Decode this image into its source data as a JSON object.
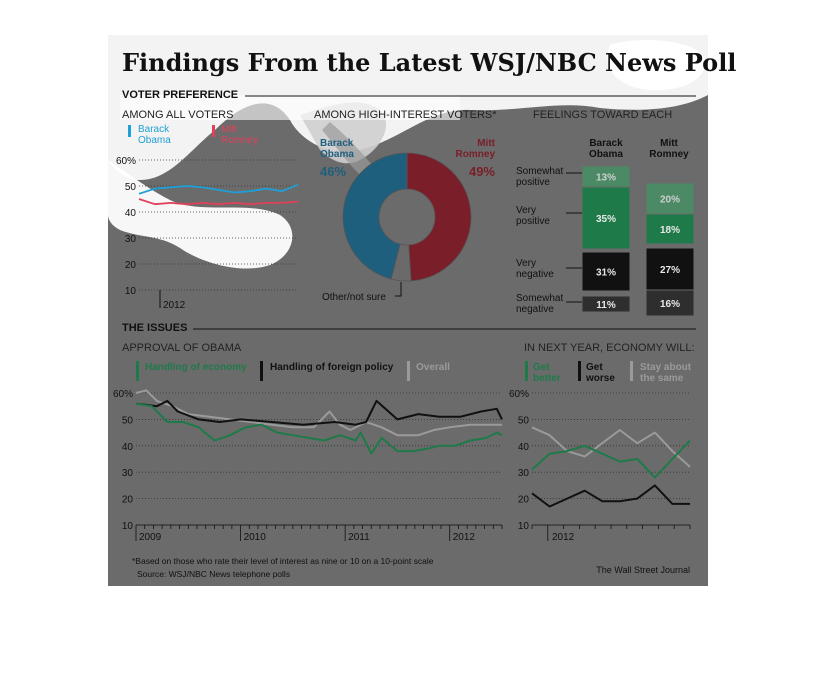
{
  "title": "Findings From the Latest WSJ/NBC News Poll",
  "sections": {
    "voter_preference": "VOTER PREFERENCE",
    "the_issues": "THE ISSUES"
  },
  "footnote": "*Based on those who rate their level of interest as nine or 10 on a 10-point scale",
  "source": "Source: WSJ/NBC News telephone polls",
  "credit": "The Wall Street Journal",
  "colors": {
    "obama_blue": "#1f9fd6",
    "romney_red": "#e0405a",
    "econ_green": "#1f7a4a",
    "foreign_black": "#111111",
    "overall_gray": "#9a9a9a"
  },
  "chart_data": [
    {
      "id": "all-voters",
      "type": "line",
      "title": "AMONG ALL VOTERS",
      "ylim": [
        10,
        60
      ],
      "yticks": [
        "60%",
        "50",
        "40",
        "30",
        "20",
        "10"
      ],
      "xticks": [
        "2012"
      ],
      "series": [
        {
          "name": "Barack Obama",
          "color": "#1f9fd6",
          "values": [
            47,
            49,
            49.5,
            50,
            49.5,
            48.5,
            47.5,
            48,
            49,
            48,
            50.5
          ]
        },
        {
          "name": "Mitt Romney",
          "color": "#e0405a",
          "values": [
            45,
            43,
            43.5,
            43,
            43.5,
            43,
            43.5,
            43,
            43.5,
            43.5,
            44
          ]
        }
      ]
    },
    {
      "id": "high-interest",
      "type": "pie",
      "title": "AMONG HIGH-INTEREST VOTERS*",
      "slices": [
        {
          "name": "Barack Obama",
          "value": 46,
          "label": "46%",
          "color": "#1f5f7e"
        },
        {
          "name": "Mitt Romney",
          "value": 49,
          "label": "49%",
          "color": "#7a1e2a"
        },
        {
          "name": "Other/not sure",
          "value": 5,
          "label": "",
          "color": "#6a6a6a"
        }
      ]
    },
    {
      "id": "feelings",
      "type": "bar",
      "title": "FEELINGS TOWARD EACH",
      "columns": [
        "Barack Obama",
        "Mitt Romney"
      ],
      "categories": [
        "Somewhat positive",
        "Very positive",
        "Very negative",
        "Somewhat negative"
      ],
      "series": [
        {
          "name": "Barack Obama",
          "values": [
            13,
            35,
            31,
            11
          ],
          "labels": [
            "13%",
            "35%",
            "31%",
            "11%"
          ]
        },
        {
          "name": "Mitt Romney",
          "values": [
            20,
            18,
            27,
            16
          ],
          "labels": [
            "20%",
            "18%",
            "27%",
            "16%"
          ]
        }
      ],
      "colors": [
        "#4c8a66",
        "#1f7a4a",
        "#111111",
        "#2e2e2e"
      ]
    },
    {
      "id": "approval",
      "type": "line",
      "title": "APPROVAL OF OBAMA",
      "ylim": [
        10,
        60
      ],
      "yticks": [
        "60%",
        "50",
        "40",
        "30",
        "20",
        "10"
      ],
      "xticks": [
        "2009",
        "2010",
        "2011",
        "2012"
      ],
      "xrange": [
        2009,
        2012.5
      ],
      "series": [
        {
          "name": "Handling of economy",
          "color": "#1f7a4a",
          "x": [
            2009.0,
            2009.15,
            2009.3,
            2009.45,
            2009.6,
            2009.75,
            2009.9,
            2010.05,
            2010.2,
            2010.35,
            2010.5,
            2010.65,
            2010.8,
            2010.95,
            2011.1,
            2011.15,
            2011.25,
            2011.35,
            2011.5,
            2011.65,
            2011.8,
            2011.9,
            2012.05,
            2012.2,
            2012.35,
            2012.45,
            2012.5
          ],
          "y": [
            56,
            55,
            49,
            49,
            47,
            42,
            44,
            47,
            48,
            45,
            44,
            43,
            42,
            44,
            42,
            45,
            37,
            43,
            38,
            38,
            39,
            40,
            40,
            42,
            43,
            45,
            44
          ]
        },
        {
          "name": "Handling of foreign policy",
          "color": "#111111",
          "x": [
            2009.0,
            2009.2,
            2009.3,
            2009.4,
            2009.6,
            2009.8,
            2010.0,
            2010.3,
            2010.6,
            2010.9,
            2011.1,
            2011.2,
            2011.3,
            2011.5,
            2011.7,
            2011.9,
            2012.1,
            2012.3,
            2012.45,
            2012.5
          ],
          "y": [
            56,
            55,
            57,
            53,
            50,
            49,
            50,
            49,
            48,
            49,
            48,
            49,
            57,
            50,
            52,
            51,
            51,
            53,
            54,
            50
          ]
        },
        {
          "name": "Overall",
          "color": "#9a9a9a",
          "x": [
            2009.0,
            2009.1,
            2009.2,
            2009.35,
            2009.5,
            2009.7,
            2009.9,
            2010.1,
            2010.3,
            2010.5,
            2010.7,
            2010.85,
            2010.95,
            2011.05,
            2011.2,
            2011.35,
            2011.5,
            2011.7,
            2011.85,
            2012.0,
            2012.2,
            2012.35,
            2012.5
          ],
          "y": [
            60,
            61,
            57,
            55,
            52,
            51,
            50,
            49,
            48,
            47,
            47,
            53,
            48,
            46,
            49,
            47,
            44,
            44,
            46,
            47,
            48,
            48,
            48
          ]
        }
      ]
    },
    {
      "id": "economy-next-year",
      "type": "line",
      "title": "IN NEXT YEAR, ECONOMY WILL:",
      "ylim": [
        10,
        60
      ],
      "yticks": [
        "60%",
        "50",
        "40",
        "30",
        "20",
        "10"
      ],
      "xticks": [
        "2012"
      ],
      "series": [
        {
          "name": "Get better",
          "color": "#1f7a4a",
          "values": [
            31,
            37,
            38,
            40,
            37,
            34,
            35,
            28,
            35,
            42
          ]
        },
        {
          "name": "Get worse",
          "color": "#111111",
          "values": [
            22,
            17,
            20,
            23,
            19,
            19,
            20,
            25,
            18,
            18
          ]
        },
        {
          "name": "Stay about the same",
          "color": "#9a9a9a",
          "values": [
            47,
            44,
            38,
            36,
            41,
            46,
            41,
            45,
            38,
            32
          ]
        }
      ]
    }
  ],
  "labels": {
    "legend_obama": [
      "Barack",
      "Obama"
    ],
    "legend_romney": [
      "Mitt",
      "Romney"
    ],
    "pie_obama": [
      "Barack",
      "Obama"
    ],
    "pie_romney": [
      "Mitt",
      "Romney"
    ],
    "pie_other": "Other/not sure",
    "feel_col_obama": [
      "Barack",
      "Obama"
    ],
    "feel_col_romney": [
      "Mitt",
      "Romney"
    ],
    "feel_rows": [
      [
        "Somewhat",
        "positive"
      ],
      [
        "Very",
        "positive"
      ],
      [
        "Very",
        "negative"
      ],
      [
        "Somewhat",
        "negative"
      ]
    ],
    "approval_legend": [
      "Handling of economy",
      "Handling of foreign policy",
      "Overall"
    ],
    "econ_legend": [
      [
        "Get",
        "better"
      ],
      [
        "Get",
        "worse"
      ],
      [
        "Stay about",
        "the same"
      ]
    ]
  }
}
